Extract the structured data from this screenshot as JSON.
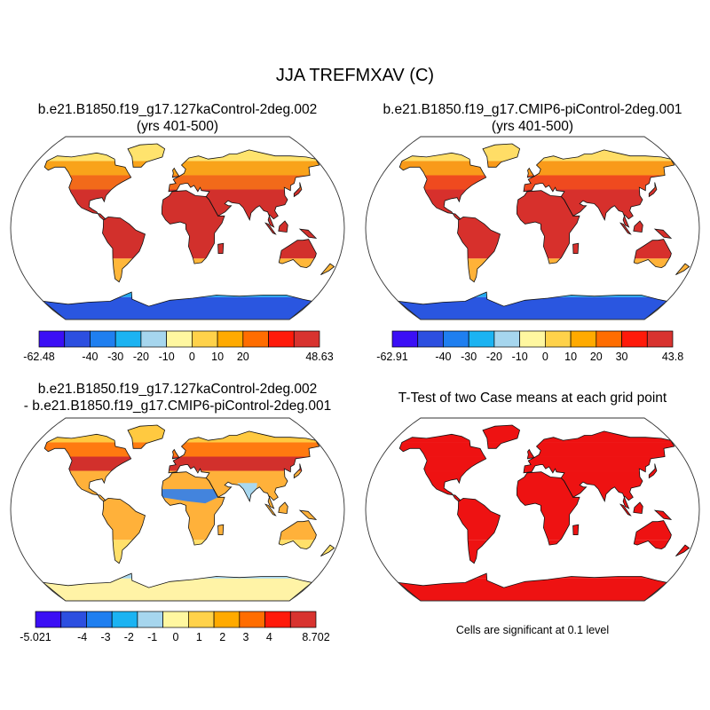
{
  "page": {
    "title": "JJA TREFMXAV (C)"
  },
  "colors": {
    "land_outline": "#111111",
    "map_border": "#333333",
    "ocean": "#ffffff"
  },
  "chart_data": [
    {
      "type": "heatmap",
      "id": "case1",
      "title": "b.e21.B1850.f19_g17.127kaControl-2deg.002",
      "subtitle": "(yrs 401-500)",
      "projection": "Robinson",
      "colorbar": {
        "colors": [
          "#3b0ff5",
          "#2c4fe0",
          "#1f7ff0",
          "#1bb3f2",
          "#a6d6ee",
          "#fff7a0",
          "#ffd24a",
          "#ffaa00",
          "#ff6d00",
          "#ff1a0a",
          "#d8332f"
        ],
        "boundary_labels": [
          "-62.48",
          "-40",
          "-30",
          "-20",
          "-10",
          "0",
          "10",
          "20",
          "",
          "48.63"
        ],
        "boundary_positions": [
          0,
          2,
          3,
          4,
          5,
          6,
          7,
          8,
          10,
          11
        ]
      },
      "layers": {
        "tropics": "#d2302c",
        "midlat_n": "#f26a1a",
        "highlat_n": "#f9a31a",
        "arctic": "#ffe36d",
        "south_tip": "#ffb73a",
        "antarctic": "#2a56e0",
        "antarctic_edge": "#24a9ee"
      }
    },
    {
      "type": "heatmap",
      "id": "case2",
      "title": "b.e21.B1850.f19_g17.CMIP6-piControl-2deg.001",
      "subtitle": "(yrs 401-500)",
      "projection": "Robinson",
      "colorbar": {
        "colors": [
          "#3b0ff5",
          "#2c4fe0",
          "#1f7ff0",
          "#1bb3f2",
          "#a6d6ee",
          "#fff7a0",
          "#ffd24a",
          "#ffaa00",
          "#ff6d00",
          "#ff1a0a",
          "#d8332f"
        ],
        "boundary_labels": [
          "-62.91",
          "-40",
          "-30",
          "-20",
          "-10",
          "0",
          "10",
          "20",
          "30",
          "43.8"
        ],
        "boundary_positions": [
          0,
          2,
          3,
          4,
          5,
          6,
          7,
          8,
          9,
          11
        ]
      },
      "layers": {
        "tropics": "#d7302c",
        "midlat_n": "#ef4a1f",
        "highlat_n": "#f99a1a",
        "arctic": "#ffdd66",
        "south_tip": "#ffb238",
        "antarctic": "#2a56e0",
        "antarctic_edge": "#24a9ee"
      }
    },
    {
      "type": "heatmap",
      "id": "difference",
      "title": "b.e21.B1850.f19_g17.127kaControl-2deg.002",
      "subtitle": "- b.e21.B1850.f19_g17.CMIP6-piControl-2deg.001",
      "projection": "Robinson",
      "colorbar": {
        "colors": [
          "#3b0ff5",
          "#2c4fe0",
          "#1f7ff0",
          "#1bb3f2",
          "#a6d6ee",
          "#fff7a0",
          "#ffd24a",
          "#ffaa00",
          "#ff6d00",
          "#ff1a0a",
          "#d8332f"
        ],
        "boundary_labels": [
          "-5.021",
          "-4",
          "-3",
          "-2",
          "-1",
          "0",
          "1",
          "2",
          "3",
          "4",
          "8.702"
        ],
        "boundary_positions": [
          0,
          2,
          3,
          4,
          5,
          6,
          7,
          8,
          9,
          10,
          12
        ]
      },
      "layers": {
        "tropics": "#ffb13a",
        "midlat_n": "#d2302c",
        "highlat_n": "#ff7a10",
        "arctic": "#ffc940",
        "south_tip": "#ffe06a",
        "antarctic": "#fff3a6",
        "antarctic_edge": "#a9d8ef",
        "sahel": "#2f7ff0"
      }
    },
    {
      "type": "heatmap",
      "id": "ttest",
      "title": "T-Test of two Case means at each grid point",
      "subtitle": "",
      "projection": "Robinson",
      "note": "Cells are significant at 0.1 level",
      "layers": {
        "tropics": "#ee1212",
        "midlat_n": "#ee1212",
        "highlat_n": "#ee1212",
        "arctic": "#ee1212",
        "south_tip": "#ee1212",
        "antarctic": "#ee1212",
        "antarctic_edge": "#ee1212"
      }
    }
  ]
}
